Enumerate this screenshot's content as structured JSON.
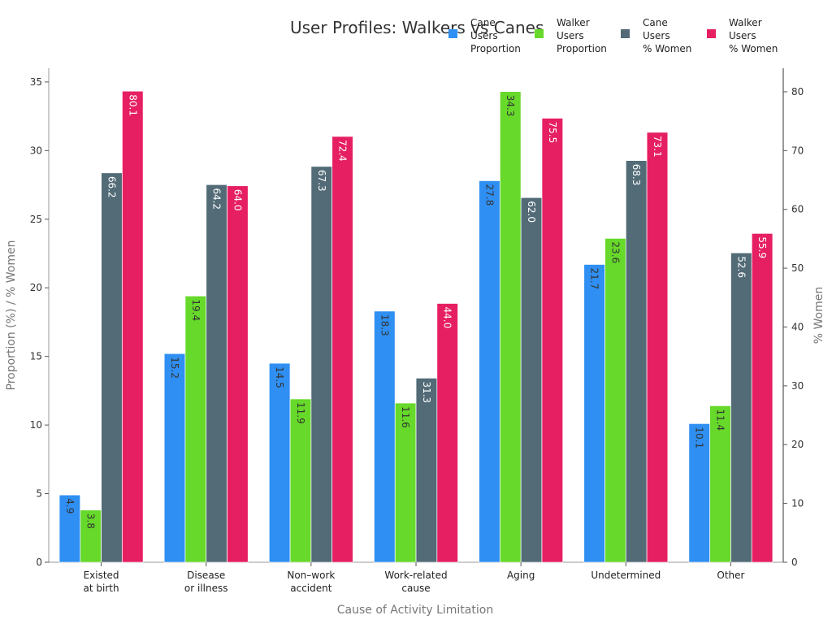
{
  "chart_data": {
    "type": "bar",
    "title": "User Profiles: Walkers vs Canes",
    "xlabel": "Cause of Activity Limitation",
    "ylabel": "Proportion (%) / % Women",
    "ylabel_right": "% Women",
    "ylim": [
      0,
      36
    ],
    "ylim_right": [
      0,
      84
    ],
    "yticks": [
      0,
      5,
      10,
      15,
      20,
      25,
      30,
      35
    ],
    "yticks_right": [
      0,
      10,
      20,
      30,
      40,
      50,
      60,
      70,
      80
    ],
    "grid": false,
    "legend_position": "top-right",
    "categories": [
      "Existed\nat birth",
      "Disease\nor illness",
      "Non–work\naccident",
      "Work-related\ncause",
      "Aging",
      "Undetermined",
      "Other"
    ],
    "series": [
      {
        "name": "Cane\nUsers\nProportion",
        "axis": "left",
        "color": "#2f8ff2",
        "values": [
          4.9,
          15.2,
          14.5,
          18.3,
          27.8,
          21.7,
          10.1
        ]
      },
      {
        "name": "Walker\nUsers\nProportion",
        "axis": "left",
        "color": "#66d92a",
        "values": [
          3.8,
          19.4,
          11.9,
          11.6,
          34.3,
          23.6,
          11.4
        ]
      },
      {
        "name": "Cane\nUsers\n% Women",
        "axis": "right",
        "color": "#526b77",
        "values": [
          66.2,
          64.2,
          67.3,
          31.3,
          62.0,
          68.3,
          52.6
        ]
      },
      {
        "name": "Walker\nUsers\n% Women",
        "axis": "right",
        "color": "#e61f62",
        "values": [
          80.1,
          64.0,
          72.4,
          44.0,
          75.5,
          73.1,
          55.9
        ]
      }
    ]
  }
}
